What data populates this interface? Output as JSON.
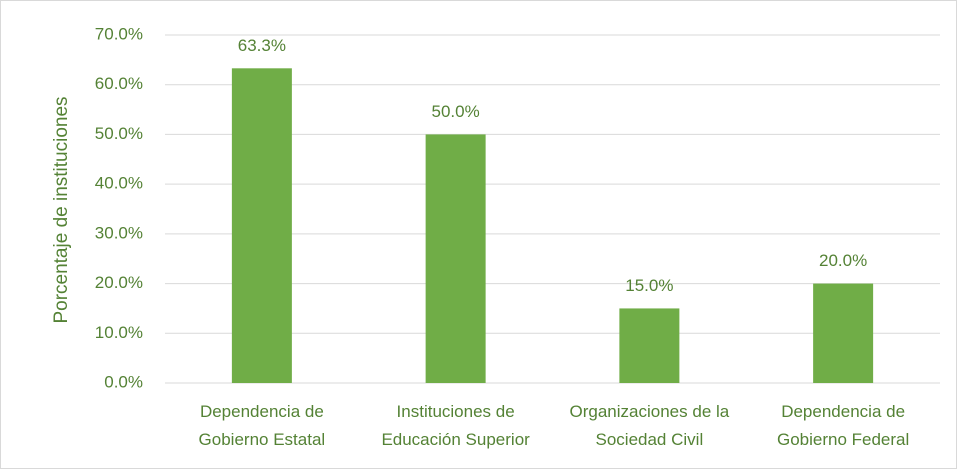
{
  "chart_data": {
    "type": "bar",
    "y_label": "Porcentaje de instituciones",
    "categories": [
      "Dependencia de Gobierno Estatal",
      "Instituciones de Educación Superior",
      "Organizaciones de la Sociedad Civil",
      "Dependencia de Gobierno Federal"
    ],
    "values": [
      63.3,
      50.0,
      15.0,
      20.0
    ],
    "value_labels": [
      "63.3%",
      "50.0%",
      "15.0%",
      "20.0%"
    ],
    "color": "#70ad47",
    "ylim": [
      0,
      70
    ],
    "yticks": [
      {
        "value": 0,
        "label": "0.0%"
      },
      {
        "value": 10,
        "label": "10.0%"
      },
      {
        "value": 20,
        "label": "20.0%"
      },
      {
        "value": 30,
        "label": "30.0%"
      },
      {
        "value": 40,
        "label": "40.0%"
      },
      {
        "value": 50,
        "label": "50.0%"
      },
      {
        "value": 60,
        "label": "60.0%"
      },
      {
        "value": 70,
        "label": "70.0%"
      }
    ],
    "grid": true
  }
}
